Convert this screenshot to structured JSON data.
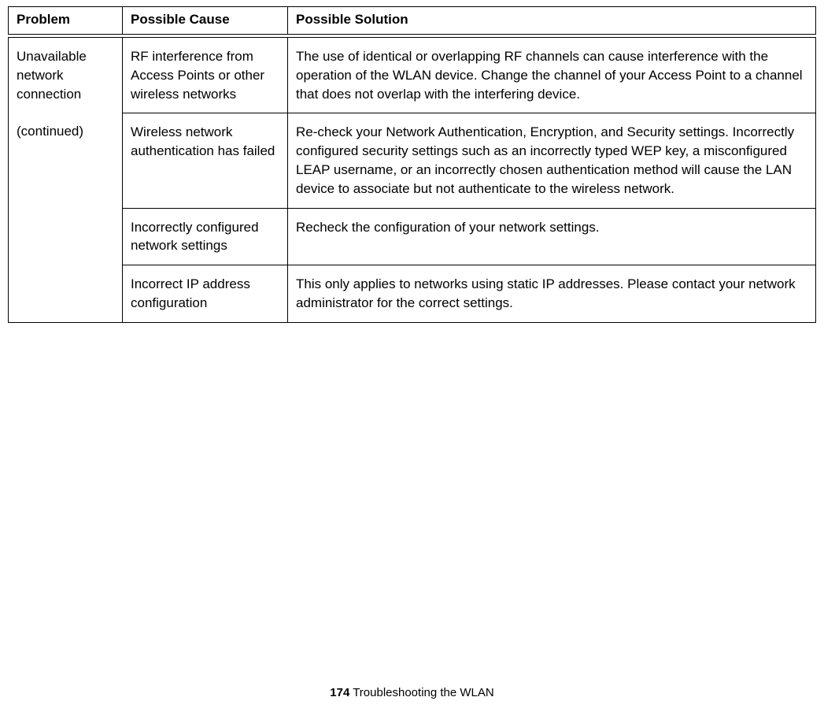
{
  "table": {
    "headers": {
      "problem": "Problem",
      "cause": "Possible Cause",
      "solution": "Possible Solution"
    },
    "problem_text": "Unavailable network connection",
    "problem_continued": "(continued)",
    "rows": [
      {
        "cause": "RF interference from Access Points or other wireless networks",
        "solution": "The use of identical or overlapping RF channels can cause interference with the operation of the WLAN device. Change the channel of your Access Point to a channel that does not overlap with the interfering device."
      },
      {
        "cause": "Wireless network authentication has failed",
        "solution": "Re-check your Network Authentication, Encryption, and Security settings. Incorrectly configured security settings such as an incorrectly typed WEP key, a misconfigured LEAP username, or an incorrectly chosen authentication method will cause the LAN device to associate but not authenticate to the wireless network."
      },
      {
        "cause": "Incorrectly configured network settings",
        "solution": "Recheck the configuration of your network settings."
      },
      {
        "cause": "Incorrect IP address configuration",
        "solution": "This only applies to networks using static IP addresses. Please contact your network administrator for the correct settings."
      }
    ]
  },
  "footer": {
    "page_number": "174",
    "title": " Troubleshooting the WLAN"
  },
  "styling": {
    "font_family": "Arial, Helvetica, sans-serif",
    "header_font_size": 17,
    "body_font_size": 17,
    "footer_font_size": 15,
    "border_color": "#000000",
    "background_color": "#ffffff",
    "text_color": "#000000",
    "col_widths": {
      "problem": 145,
      "cause": 210
    }
  }
}
